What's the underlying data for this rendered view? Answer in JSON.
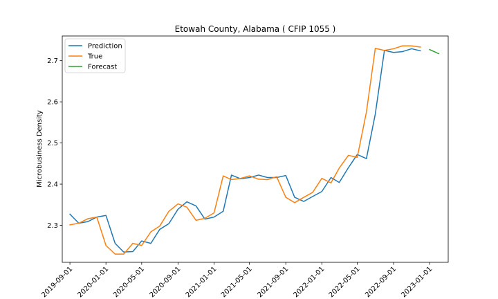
{
  "chart_data": {
    "type": "line",
    "title": "Etowah County, Alabama ( CFIP 1055 )",
    "xlabel": "",
    "ylabel": "Microbusiness Density",
    "ylim": [
      2.21,
      2.76
    ],
    "xlim": [
      "2019-08-06",
      "2023-03-05"
    ],
    "grid": false,
    "legend_position": "top-left",
    "x_ticks": [
      "2019-09-01",
      "2020-01-01",
      "2020-05-01",
      "2020-09-01",
      "2021-01-01",
      "2021-05-01",
      "2021-09-01",
      "2022-01-01",
      "2022-05-01",
      "2022-09-01",
      "2023-01-01"
    ],
    "y_ticks": [
      2.3,
      2.4,
      2.5,
      2.6,
      2.7
    ],
    "series": [
      {
        "name": "Prediction",
        "color": "#1f77b4",
        "x": [
          "2019-09-01",
          "2019-10-01",
          "2019-11-01",
          "2019-12-01",
          "2020-01-01",
          "2020-02-01",
          "2020-03-01",
          "2020-04-01",
          "2020-05-01",
          "2020-06-01",
          "2020-07-01",
          "2020-08-01",
          "2020-09-01",
          "2020-10-01",
          "2020-11-01",
          "2020-12-01",
          "2021-01-01",
          "2021-02-01",
          "2021-03-01",
          "2021-04-01",
          "2021-05-01",
          "2021-06-01",
          "2021-07-01",
          "2021-08-01",
          "2021-09-01",
          "2021-10-01",
          "2021-11-01",
          "2021-12-01",
          "2022-01-01",
          "2022-02-01",
          "2022-03-01",
          "2022-04-01",
          "2022-05-01",
          "2022-06-01",
          "2022-07-01",
          "2022-08-01",
          "2022-09-01",
          "2022-10-01",
          "2022-11-01",
          "2022-12-01"
        ],
        "values": [
          2.327,
          2.305,
          2.309,
          2.32,
          2.324,
          2.256,
          2.235,
          2.236,
          2.262,
          2.256,
          2.29,
          2.304,
          2.339,
          2.357,
          2.347,
          2.315,
          2.32,
          2.334,
          2.422,
          2.413,
          2.416,
          2.422,
          2.416,
          2.416,
          2.421,
          2.368,
          2.358,
          2.37,
          2.382,
          2.416,
          2.404,
          2.44,
          2.472,
          2.462,
          2.57,
          2.725,
          2.72,
          2.722,
          2.729,
          2.724
        ]
      },
      {
        "name": "True",
        "color": "#ff7f0e",
        "x": [
          "2019-09-01",
          "2019-10-01",
          "2019-11-01",
          "2019-12-01",
          "2020-01-01",
          "2020-02-01",
          "2020-03-01",
          "2020-04-01",
          "2020-05-01",
          "2020-06-01",
          "2020-07-01",
          "2020-08-01",
          "2020-09-01",
          "2020-10-01",
          "2020-11-01",
          "2020-12-01",
          "2021-01-01",
          "2021-02-01",
          "2021-03-01",
          "2021-04-01",
          "2021-05-01",
          "2021-06-01",
          "2021-07-01",
          "2021-08-01",
          "2021-09-01",
          "2021-10-01",
          "2021-11-01",
          "2021-12-01",
          "2022-01-01",
          "2022-02-01",
          "2022-03-01",
          "2022-04-01",
          "2022-05-01",
          "2022-06-01",
          "2022-07-01",
          "2022-08-01",
          "2022-09-01",
          "2022-10-01",
          "2022-11-01",
          "2022-12-01"
        ],
        "values": [
          2.301,
          2.305,
          2.316,
          2.32,
          2.251,
          2.23,
          2.23,
          2.256,
          2.251,
          2.284,
          2.298,
          2.334,
          2.352,
          2.344,
          2.312,
          2.317,
          2.33,
          2.42,
          2.411,
          2.414,
          2.42,
          2.412,
          2.411,
          2.418,
          2.368,
          2.355,
          2.368,
          2.38,
          2.414,
          2.403,
          2.439,
          2.47,
          2.465,
          2.575,
          2.73,
          2.725,
          2.729,
          2.736,
          2.736,
          2.733
        ]
      },
      {
        "name": "Forecast",
        "color": "#2ca02c",
        "x": [
          "2023-01-01",
          "2023-02-01"
        ],
        "values": [
          2.727,
          2.717
        ]
      }
    ]
  }
}
